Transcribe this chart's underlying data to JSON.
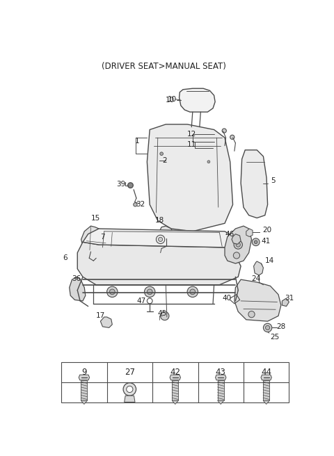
{
  "title": "(DRIVER SEAT>MANUAL SEAT)",
  "bg_color": "#ffffff",
  "line_color": "#4a4a4a",
  "fig_width": 4.8,
  "fig_height": 6.56,
  "dpi": 100,
  "table_nums": [
    "9",
    "27",
    "42",
    "43",
    "44"
  ]
}
